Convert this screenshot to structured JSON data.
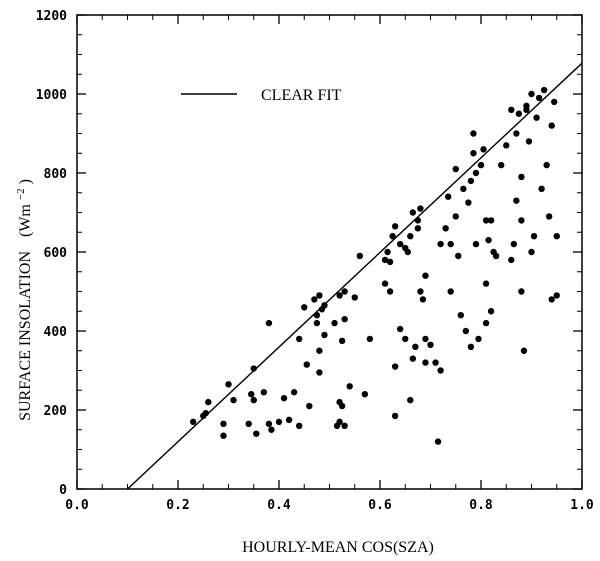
{
  "chart_data": {
    "type": "scatter",
    "title": "",
    "xlabel": "HOURLY-MEAN COS(SZA)",
    "ylabel": "SURFACE INSOLATION",
    "ylabel_unit": "(Wm",
    "ylabel_unit_exp": "−2",
    "ylabel_unit_close": ")",
    "xlim": [
      0.0,
      1.0
    ],
    "ylim": [
      0,
      1200
    ],
    "x_ticks": [
      0.0,
      0.2,
      0.4,
      0.6,
      0.8,
      1.0
    ],
    "x_tick_labels": [
      "0.0",
      "0.2",
      "0.4",
      "0.6",
      "0.8",
      "1.0"
    ],
    "y_ticks": [
      0,
      200,
      400,
      600,
      800,
      1000,
      1200
    ],
    "y_tick_labels": [
      "0",
      "200",
      "400",
      "600",
      "800",
      "1000",
      "1200"
    ],
    "grid": false,
    "legend": {
      "placement": "top-left",
      "entries": [
        {
          "name": "CLEAR FIT",
          "style": "line"
        }
      ]
    },
    "fit_line": {
      "name": "CLEAR FIT",
      "x": [
        0.1,
        1.0
      ],
      "y": [
        0,
        1078
      ]
    },
    "series": [
      {
        "style": "points",
        "points": [
          [
            0.23,
            170
          ],
          [
            0.25,
            185
          ],
          [
            0.255,
            192
          ],
          [
            0.26,
            220
          ],
          [
            0.29,
            135
          ],
          [
            0.29,
            165
          ],
          [
            0.3,
            265
          ],
          [
            0.31,
            225
          ],
          [
            0.34,
            165
          ],
          [
            0.345,
            240
          ],
          [
            0.35,
            225
          ],
          [
            0.35,
            305
          ],
          [
            0.355,
            140
          ],
          [
            0.37,
            245
          ],
          [
            0.38,
            165
          ],
          [
            0.38,
            420
          ],
          [
            0.385,
            150
          ],
          [
            0.4,
            170
          ],
          [
            0.41,
            230
          ],
          [
            0.42,
            175
          ],
          [
            0.43,
            245
          ],
          [
            0.44,
            380
          ],
          [
            0.44,
            160
          ],
          [
            0.45,
            460
          ],
          [
            0.455,
            315
          ],
          [
            0.46,
            210
          ],
          [
            0.47,
            480
          ],
          [
            0.475,
            440
          ],
          [
            0.475,
            420
          ],
          [
            0.48,
            350
          ],
          [
            0.48,
            490
          ],
          [
            0.48,
            295
          ],
          [
            0.485,
            455
          ],
          [
            0.49,
            465
          ],
          [
            0.49,
            390
          ],
          [
            0.51,
            420
          ],
          [
            0.515,
            160
          ],
          [
            0.52,
            490
          ],
          [
            0.52,
            170
          ],
          [
            0.52,
            220
          ],
          [
            0.525,
            375
          ],
          [
            0.525,
            210
          ],
          [
            0.53,
            500
          ],
          [
            0.53,
            430
          ],
          [
            0.53,
            160
          ],
          [
            0.54,
            260
          ],
          [
            0.55,
            485
          ],
          [
            0.56,
            590
          ],
          [
            0.57,
            240
          ],
          [
            0.58,
            380
          ],
          [
            0.61,
            520
          ],
          [
            0.61,
            580
          ],
          [
            0.615,
            600
          ],
          [
            0.62,
            500
          ],
          [
            0.62,
            575
          ],
          [
            0.625,
            640
          ],
          [
            0.63,
            185
          ],
          [
            0.63,
            665
          ],
          [
            0.63,
            310
          ],
          [
            0.64,
            620
          ],
          [
            0.64,
            405
          ],
          [
            0.65,
            610
          ],
          [
            0.65,
            380
          ],
          [
            0.655,
            600
          ],
          [
            0.66,
            640
          ],
          [
            0.66,
            225
          ],
          [
            0.665,
            700
          ],
          [
            0.665,
            330
          ],
          [
            0.67,
            360
          ],
          [
            0.675,
            680
          ],
          [
            0.675,
            660
          ],
          [
            0.68,
            710
          ],
          [
            0.68,
            500
          ],
          [
            0.685,
            480
          ],
          [
            0.69,
            380
          ],
          [
            0.69,
            540
          ],
          [
            0.69,
            320
          ],
          [
            0.7,
            365
          ],
          [
            0.71,
            320
          ],
          [
            0.715,
            120
          ],
          [
            0.72,
            300
          ],
          [
            0.72,
            620
          ],
          [
            0.73,
            660
          ],
          [
            0.735,
            740
          ],
          [
            0.74,
            500
          ],
          [
            0.74,
            620
          ],
          [
            0.75,
            690
          ],
          [
            0.75,
            810
          ],
          [
            0.755,
            590
          ],
          [
            0.76,
            440
          ],
          [
            0.765,
            760
          ],
          [
            0.77,
            400
          ],
          [
            0.775,
            725
          ],
          [
            0.78,
            360
          ],
          [
            0.78,
            780
          ],
          [
            0.785,
            900
          ],
          [
            0.785,
            850
          ],
          [
            0.79,
            800
          ],
          [
            0.79,
            620
          ],
          [
            0.795,
            380
          ],
          [
            0.8,
            820
          ],
          [
            0.805,
            860
          ],
          [
            0.81,
            420
          ],
          [
            0.81,
            680
          ],
          [
            0.81,
            520
          ],
          [
            0.815,
            630
          ],
          [
            0.82,
            680
          ],
          [
            0.82,
            450
          ],
          [
            0.825,
            600
          ],
          [
            0.83,
            590
          ],
          [
            0.84,
            820
          ],
          [
            0.85,
            870
          ],
          [
            0.86,
            960
          ],
          [
            0.86,
            580
          ],
          [
            0.865,
            620
          ],
          [
            0.87,
            730
          ],
          [
            0.87,
            900
          ],
          [
            0.875,
            950
          ],
          [
            0.88,
            680
          ],
          [
            0.88,
            790
          ],
          [
            0.88,
            500
          ],
          [
            0.885,
            350
          ],
          [
            0.89,
            960
          ],
          [
            0.89,
            970
          ],
          [
            0.895,
            880
          ],
          [
            0.9,
            1000
          ],
          [
            0.9,
            600
          ],
          [
            0.905,
            640
          ],
          [
            0.91,
            940
          ],
          [
            0.915,
            990
          ],
          [
            0.92,
            760
          ],
          [
            0.925,
            1010
          ],
          [
            0.93,
            820
          ],
          [
            0.935,
            690
          ],
          [
            0.94,
            920
          ],
          [
            0.94,
            480
          ],
          [
            0.945,
            980
          ],
          [
            0.95,
            640
          ],
          [
            0.95,
            490
          ]
        ]
      }
    ]
  }
}
